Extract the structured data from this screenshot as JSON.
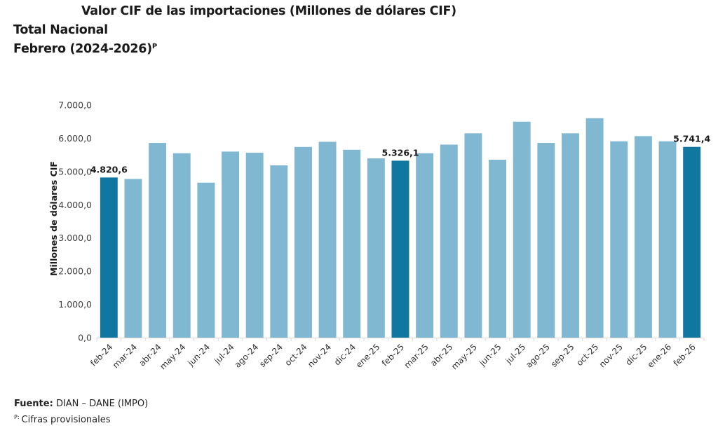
{
  "header": {
    "title": "Valor CIF de las importaciones (Millones de dólares CIF)",
    "subtitle_line1": "Total Nacional",
    "subtitle_line2": "Febrero (2024-2026)",
    "subtitle_superscript": "P"
  },
  "footer": {
    "source_label": "Fuente:",
    "source_value": "DIAN – DANE (IMPO)",
    "note_marker": "P:",
    "note_text": "Cifras provisionales"
  },
  "colors": {
    "highlight_bar": "#0f77a0",
    "regular_bar": "#80b8d2",
    "axis": "#d9d9d9",
    "text": "#404040"
  },
  "chart_data": {
    "type": "bar",
    "title": "Valor CIF de las importaciones (Millones de dólares CIF)",
    "xlabel": "",
    "ylabel": "Millones de dólares CIF",
    "ylim": [
      0,
      7000
    ],
    "yticks": [
      0,
      1000,
      2000,
      3000,
      4000,
      5000,
      6000,
      7000
    ],
    "ytick_labels": [
      "0,0",
      "1.000,0",
      "2.000,0",
      "3.000,0",
      "4.000,0",
      "5.000,0",
      "6.000,0",
      "7.000,0"
    ],
    "grid": false,
    "legend": "none",
    "categories": [
      "feb-24",
      "mar-24",
      "abr-24",
      "may-24",
      "jun-24",
      "jul-24",
      "ago-24",
      "sep-24",
      "oct-24",
      "nov-24",
      "dic-24",
      "ene-25",
      "feb-25",
      "mar-25",
      "abr-25",
      "may-25",
      "jun-25",
      "jul-25",
      "ago-25",
      "sep-25",
      "oct-25",
      "nov-25",
      "dic-25",
      "ene-26",
      "feb-26"
    ],
    "values": [
      4820.6,
      4775,
      5860,
      5550,
      4665,
      5600,
      5565,
      5185,
      5740,
      5895,
      5655,
      5395,
      5326.1,
      5550,
      5810,
      6150,
      5355,
      6500,
      5860,
      6150,
      6605,
      5910,
      6065,
      5910,
      5741.4
    ],
    "highlighted": [
      true,
      false,
      false,
      false,
      false,
      false,
      false,
      false,
      false,
      false,
      false,
      false,
      true,
      false,
      false,
      false,
      false,
      false,
      false,
      false,
      false,
      false,
      false,
      false,
      true
    ],
    "data_labels": [
      "4.820,6",
      "",
      "",
      "",
      "",
      "",
      "",
      "",
      "",
      "",
      "",
      "",
      "5.326,1",
      "",
      "",
      "",
      "",
      "",
      "",
      "",
      "",
      "",
      "",
      "",
      "5.741,4"
    ]
  }
}
